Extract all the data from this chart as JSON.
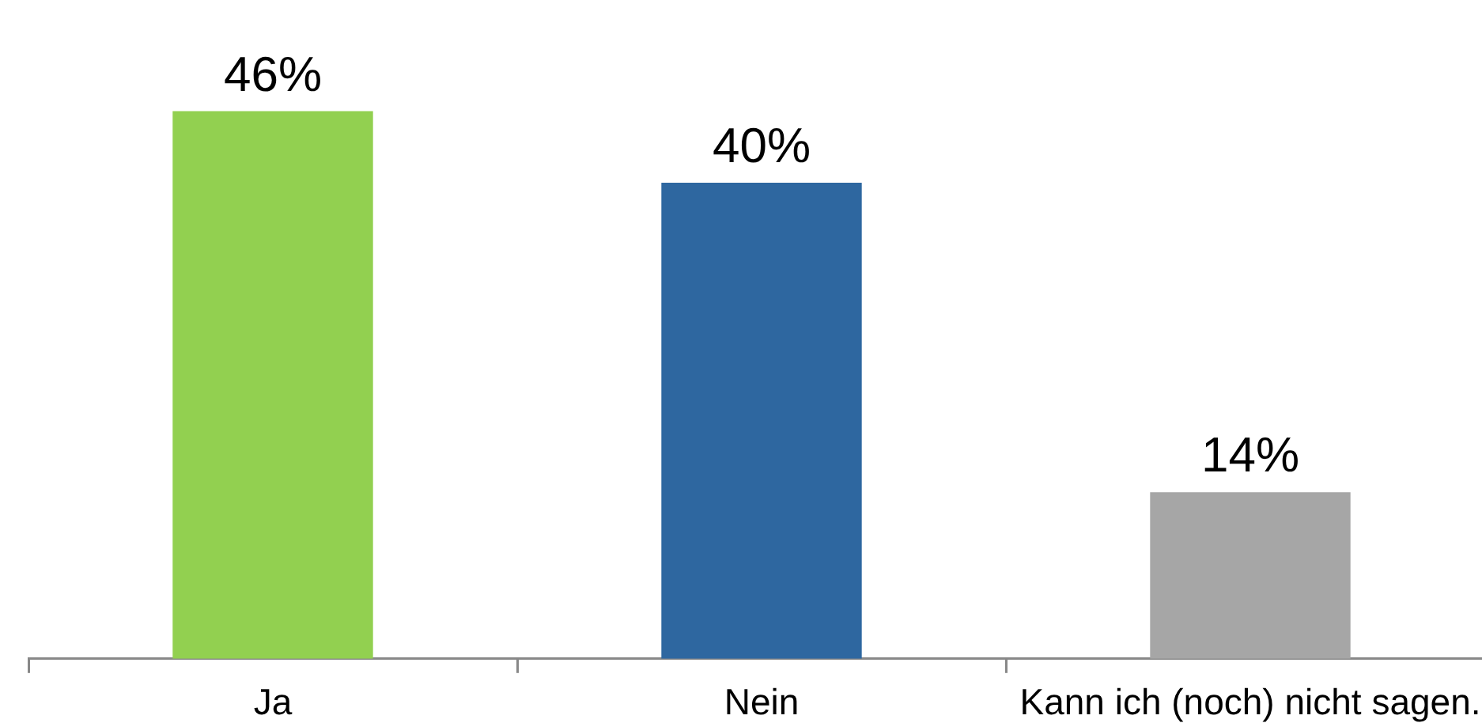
{
  "chart_data": {
    "type": "bar",
    "categories": [
      "Ja",
      "Nein",
      "Kann ich (noch) nicht sagen."
    ],
    "values": [
      46,
      40,
      14
    ],
    "colors": [
      "#92d050",
      "#2e67a0",
      "#a6a6a6"
    ],
    "value_labels": [
      "46%",
      "40%",
      "14%"
    ],
    "legend": false,
    "grid": false
  }
}
